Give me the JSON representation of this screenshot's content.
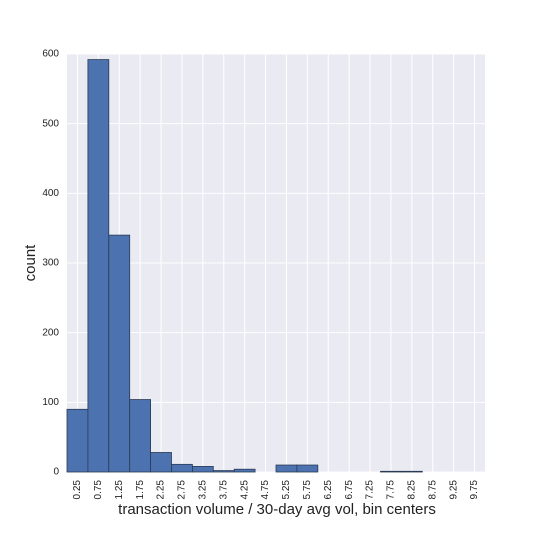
{
  "chart_data": {
    "type": "histogram",
    "bins": [
      0,
      0.5,
      1,
      1.5,
      2,
      2.5,
      3,
      3.5,
      4,
      4.5,
      5,
      5.5,
      6,
      6.5,
      7,
      7.5,
      8,
      8.5,
      9,
      9.5,
      10
    ],
    "counts": [
      90,
      592,
      340,
      104,
      28,
      11,
      8,
      2,
      4,
      0,
      10,
      10,
      0,
      0,
      0,
      1,
      1,
      0,
      0,
      0
    ],
    "color": "#4c72b0",
    "xlabel": "transaction volume / 30-day avg vol, bin centers",
    "ylabel": "count",
    "xlim": [
      0,
      10
    ],
    "xticks": [
      0.25,
      0.75,
      1.25,
      1.75,
      2.25,
      2.75,
      3.25,
      3.75,
      4.25,
      4.75,
      5.25,
      5.75,
      6.25,
      6.75,
      7.25,
      7.75,
      8.25,
      8.75,
      9.25,
      9.75
    ],
    "ylim": [
      0,
      600
    ],
    "yticks": [
      0,
      100,
      200,
      300,
      400,
      500,
      600
    ],
    "grid": true
  }
}
